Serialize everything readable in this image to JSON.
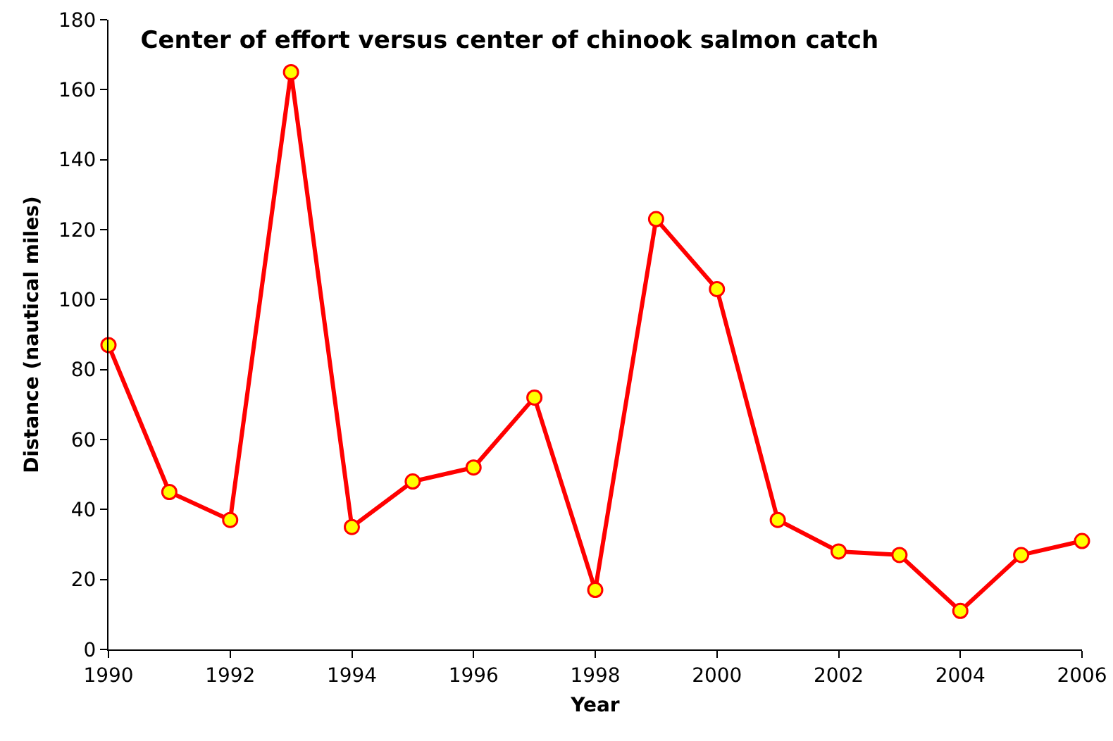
{
  "chart_data": {
    "type": "line",
    "title": "Center of effort versus center of chinook salmon catch",
    "xlabel": "Year",
    "ylabel": "Distance (nautical miles)",
    "x": [
      1990,
      1991,
      1992,
      1993,
      1994,
      1995,
      1996,
      1997,
      1998,
      1999,
      2000,
      2001,
      2002,
      2003,
      2004,
      2005,
      2006
    ],
    "series": [
      {
        "color": "#ff0000",
        "values": [
          87,
          45,
          37,
          165,
          35,
          48,
          52,
          72,
          17,
          123,
          103,
          37,
          28,
          27,
          11,
          27,
          31
        ]
      }
    ],
    "xlim": [
      1990,
      2006
    ],
    "xticks": [
      1990,
      1992,
      1994,
      1996,
      1998,
      2000,
      2002,
      2004,
      2006
    ],
    "ylim": [
      0,
      180
    ],
    "yticks": [
      0,
      20,
      40,
      60,
      80,
      100,
      120,
      140,
      160,
      180
    ],
    "grid": false,
    "marker": "circle",
    "line_style": "solid"
  }
}
